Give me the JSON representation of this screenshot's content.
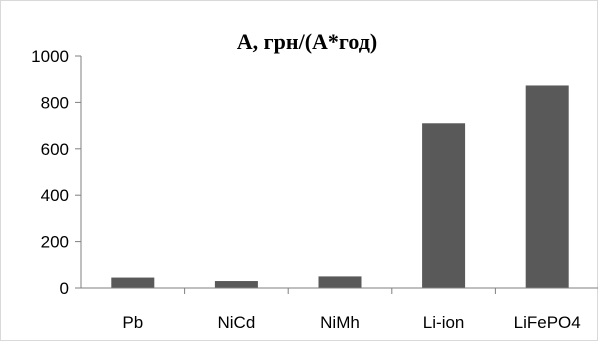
{
  "chart_data": {
    "type": "bar",
    "title": "А, грн/(А*год)",
    "categories": [
      "Pb",
      "NiCd",
      "NiMh",
      "Li-ion",
      "LiFePO4"
    ],
    "values": [
      45,
      30,
      50,
      710,
      873
    ],
    "xlabel": "",
    "ylabel": "",
    "ylim": [
      0,
      1000
    ],
    "yticks": [
      0,
      200,
      400,
      600,
      800,
      1000
    ],
    "grid": false,
    "legend": "none",
    "bar_color": "#595959",
    "axis_color": "#7f7f7f"
  }
}
